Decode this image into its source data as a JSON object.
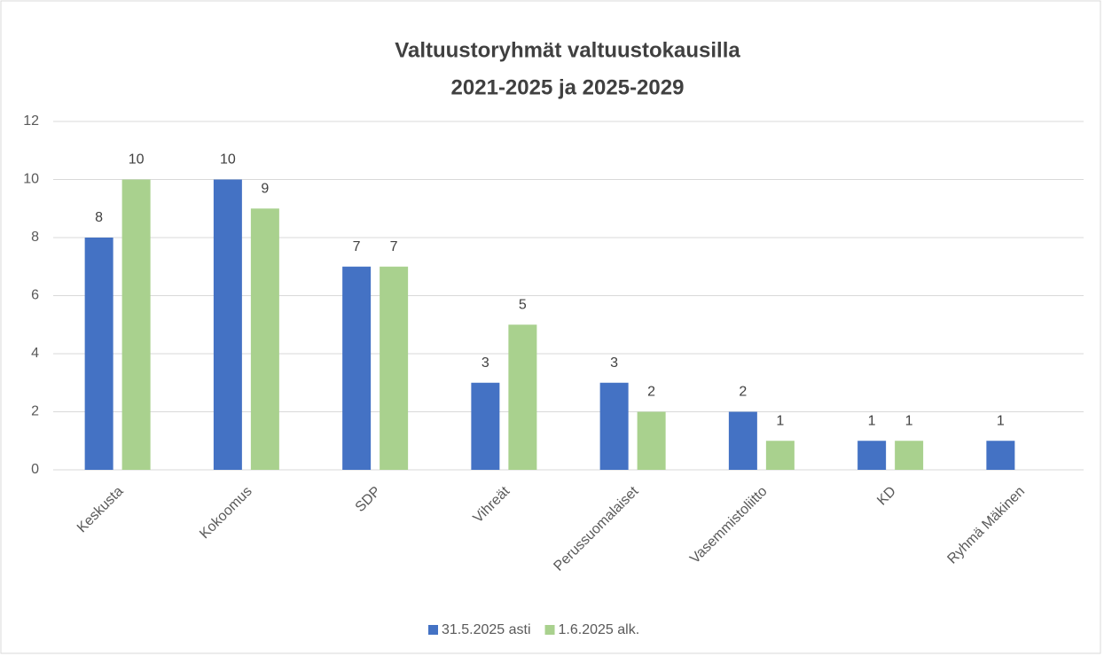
{
  "chart_data": {
    "type": "bar",
    "title": [
      "Valtuustoryhmät valtuustokausilla",
      "2021-2025 ja 2025-2029"
    ],
    "categories": [
      "Keskusta",
      "Kokoomus",
      "SDP",
      "Vihreät",
      "Perussuomalaiset",
      "Vasemmistoliitto",
      "KD",
      "Ryhmä Mäkinen"
    ],
    "series": [
      {
        "name": "31.5.2025 asti",
        "color": "#4472c4",
        "values": [
          8,
          10,
          7,
          3,
          3,
          2,
          1,
          1
        ]
      },
      {
        "name": "1.6.2025 alk.",
        "color": "#a9d18e",
        "values": [
          10,
          9,
          7,
          5,
          2,
          1,
          1,
          null
        ]
      }
    ],
    "ylim": [
      0,
      12
    ],
    "yticks": [
      0,
      2,
      4,
      6,
      8,
      10,
      12
    ],
    "grid": true,
    "legend": "bottom"
  }
}
